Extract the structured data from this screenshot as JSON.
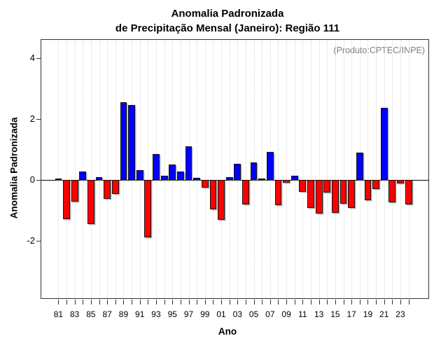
{
  "chart_data": {
    "type": "bar",
    "title": "Anomalia Padronizada de Precipitação Mensal (Janeiro): Região 111",
    "title_lines": [
      "Anomalia Padronizada",
      "de Precipitação Mensal (Janeiro): Região 111"
    ],
    "annotation": "(Produto:CPTEC/INPE)",
    "xlabel": "Ano",
    "ylabel": "Anomalia Padronizada",
    "categories": [
      "81",
      "82",
      "83",
      "84",
      "85",
      "86",
      "87",
      "88",
      "89",
      "90",
      "91",
      "92",
      "93",
      "94",
      "95",
      "96",
      "97",
      "98",
      "99",
      "00",
      "01",
      "02",
      "03",
      "04",
      "05",
      "06",
      "07",
      "08",
      "09",
      "10",
      "11",
      "12",
      "13",
      "14",
      "15",
      "16",
      "17",
      "18",
      "19",
      "20",
      "21",
      "22",
      "23",
      "24"
    ],
    "values": [
      0.03,
      -1.29,
      -0.72,
      0.27,
      -1.46,
      0.09,
      -0.62,
      -0.47,
      2.56,
      2.46,
      0.32,
      -1.89,
      0.84,
      0.14,
      0.5,
      0.26,
      1.1,
      0.07,
      -0.27,
      -0.97,
      -1.32,
      0.08,
      0.52,
      -0.81,
      0.58,
      0.05,
      0.92,
      -0.84,
      -0.11,
      0.12,
      -0.39,
      -0.92,
      -1.12,
      -0.43,
      -1.09,
      -0.78,
      -0.92,
      0.89,
      -0.67,
      -0.31,
      2.37,
      -0.75,
      -0.12,
      -0.81
    ],
    "x_tick_labels": [
      "81",
      "83",
      "85",
      "87",
      "89",
      "91",
      "93",
      "95",
      "97",
      "99",
      "01",
      "03",
      "05",
      "07",
      "09",
      "11",
      "13",
      "15",
      "17",
      "19",
      "21",
      "23"
    ],
    "y_tick_values": [
      -2,
      0,
      2,
      4
    ],
    "ylim": [
      -3.9,
      4.6
    ],
    "grid": "vertical dotted line at every year",
    "legend": null,
    "colors": {
      "positive_bar": "#0000ff",
      "negative_bar": "#ff0000",
      "annotation_text": "#808080",
      "gridline": "#d8d8d8",
      "axis": "#333333"
    }
  }
}
